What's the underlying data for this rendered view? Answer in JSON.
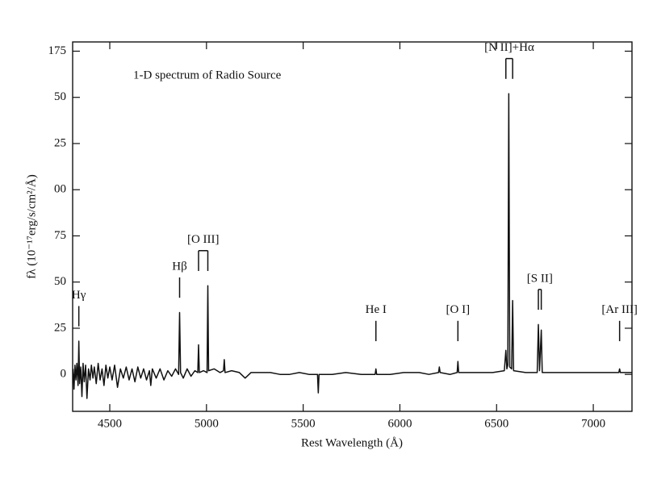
{
  "chart_data": {
    "type": "line",
    "title": "1-D spectrum of Radio Source",
    "x_label": "Rest Wavelength (Å)",
    "y_label": "fλ (10⁻¹⁷erg/s/cm²/Å)",
    "color": "#111111",
    "xlim": [
      4308,
      7200
    ],
    "xticks": [
      4500,
      5000,
      5500,
      6000,
      6500,
      7000
    ],
    "ylim": [
      -20,
      180
    ],
    "yticks": [
      0,
      25,
      50,
      75,
      {
        "value": 100,
        "label": "00"
      },
      {
        "value": 125,
        "label": "25"
      },
      {
        "value": 150,
        "label": "50"
      },
      175
    ],
    "x": [
      4310,
      4315,
      4320,
      4325,
      4330,
      4336,
      4340,
      4344,
      4350,
      4356,
      4362,
      4368,
      4375,
      4382,
      4390,
      4398,
      4405,
      4413,
      4420,
      4430,
      4440,
      4450,
      4460,
      4470,
      4480,
      4490,
      4500,
      4512,
      4525,
      4540,
      4555,
      4570,
      4585,
      4600,
      4615,
      4630,
      4645,
      4660,
      4675,
      4690,
      4705,
      4712,
      4720,
      4740,
      4760,
      4780,
      4800,
      4820,
      4840,
      4856,
      4861,
      4866,
      4880,
      4900,
      4920,
      4940,
      4955,
      4959,
      4963,
      4985,
      5003,
      5007,
      5011,
      5040,
      5070,
      5088,
      5092,
      5096,
      5130,
      5170,
      5200,
      5230,
      5280,
      5330,
      5380,
      5430,
      5480,
      5530,
      5574,
      5578,
      5582,
      5650,
      5720,
      5800,
      5872,
      5876,
      5880,
      5950,
      6020,
      6100,
      6150,
      6200,
      6204,
      6208,
      6260,
      6296,
      6300,
      6304,
      6360,
      6420,
      6480,
      6540,
      6548,
      6553,
      6558,
      6563,
      6568,
      6578,
      6583,
      6588,
      6650,
      6710,
      6716,
      6722,
      6731,
      6736,
      6800,
      6880,
      6960,
      7040,
      7132,
      7136,
      7140,
      7200
    ],
    "values": [
      3,
      -8,
      5,
      -3,
      6,
      -6,
      18,
      -5,
      4,
      -12,
      6,
      -4,
      5,
      -13,
      3,
      -3,
      5,
      -2,
      4,
      -5,
      6,
      -3,
      3,
      -6,
      5,
      -2,
      4,
      -3,
      5,
      -7,
      3,
      -2,
      4,
      -3,
      3,
      -4,
      4,
      -2,
      3,
      -3,
      2,
      -6,
      3,
      -2,
      3,
      -3,
      2,
      -1,
      3,
      0,
      33.5,
      1,
      -2,
      3,
      -1,
      2,
      1,
      16,
      1,
      2,
      1,
      48,
      2,
      3,
      1,
      2,
      8,
      1,
      2,
      1,
      -2,
      1,
      1,
      1,
      0,
      0,
      1,
      0,
      0,
      -10,
      0,
      0,
      1,
      0,
      0,
      3,
      0,
      0,
      1,
      1,
      0,
      1,
      4,
      1,
      0,
      1,
      7,
      1,
      1,
      1,
      1,
      2,
      13,
      3,
      5,
      152,
      4,
      3,
      40,
      2,
      1,
      1,
      27,
      2,
      24,
      1,
      1,
      1,
      1,
      1,
      1,
      3,
      1,
      1
    ],
    "annotations": [
      {
        "label": "Hγ",
        "x": [
          4340
        ]
      },
      {
        "label": "Hβ",
        "x": [
          4861
        ]
      },
      {
        "label": "[O III]",
        "x": [
          4959,
          5007
        ]
      },
      {
        "label": "He I",
        "x": [
          5876
        ]
      },
      {
        "label": "[O I]",
        "x": [
          6300
        ]
      },
      {
        "label": "[N II]+Hα",
        "x": [
          6548,
          6583
        ]
      },
      {
        "label": "[S II]",
        "x": [
          6716,
          6731
        ]
      },
      {
        "label": "[Ar III]",
        "x": [
          7136
        ]
      }
    ]
  }
}
